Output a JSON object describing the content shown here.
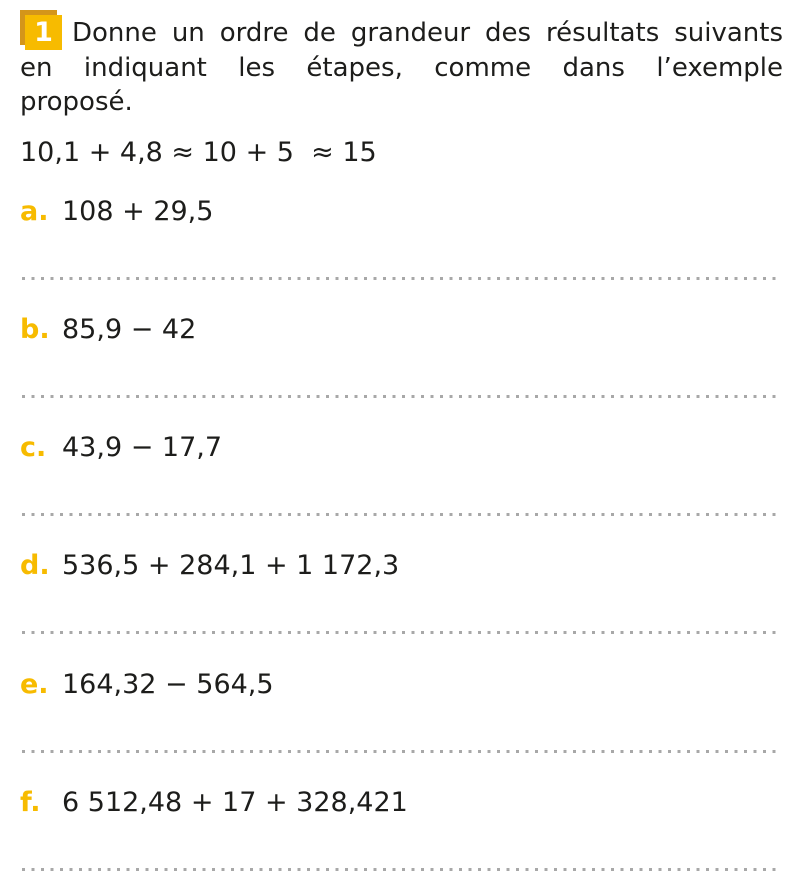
{
  "exercise": {
    "number": "1",
    "instruction_lines": [
      "Donne un ordre de grandeur des résultats suivants",
      "en indiquant les étapes, comme dans l’exemple",
      "proposé."
    ],
    "example": "10,1 + 4,8 ≈ 10 + 5  ≈ 15",
    "items": [
      {
        "label": "a.",
        "expression": "108 + 29,5"
      },
      {
        "label": "b.",
        "expression": "85,9 − 42"
      },
      {
        "label": "c.",
        "expression": "43,9 − 17,7"
      },
      {
        "label": "d.",
        "expression": "536,5 + 284,1 + 1 172,3"
      },
      {
        "label": "e.",
        "expression": "164,32 − 564,5"
      },
      {
        "label": "f.",
        "expression": "6 512,48 + 17 + 328,421"
      }
    ]
  },
  "colors": {
    "accent": "#f7bb00",
    "badge_shadow": "#d4951a",
    "dots": "#a8a8a8"
  }
}
